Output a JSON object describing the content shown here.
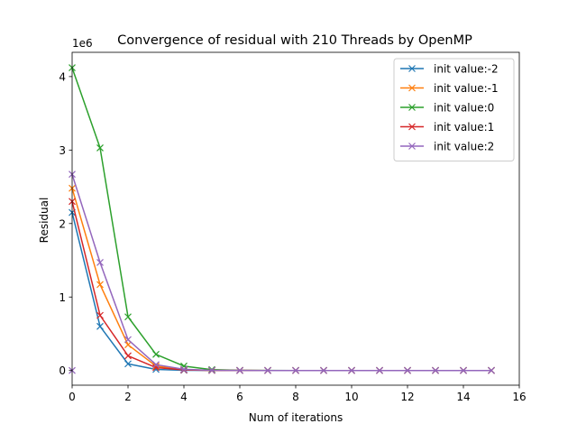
{
  "chart_data": {
    "type": "line",
    "title": "Convergence of residual with 210 Threads by OpenMP",
    "xlabel": "Num of iterations",
    "ylabel": "Residual",
    "y_scale_label": "1e6",
    "xlim": [
      0,
      16
    ],
    "ylim": [
      -0.2,
      4.33
    ],
    "x_ticks": [
      0,
      2,
      4,
      6,
      8,
      10,
      12,
      14,
      16
    ],
    "x_tick_labels": [
      "0",
      "2",
      "4",
      "6",
      "8",
      "10",
      "12",
      "14",
      "16"
    ],
    "y_ticks": [
      0,
      1,
      2,
      3,
      4
    ],
    "y_tick_labels": [
      "0",
      "1",
      "2",
      "3",
      "4"
    ],
    "grid": false,
    "marker": "x",
    "legend_position": "upper right",
    "x": [
      0,
      1,
      2,
      3,
      4,
      5,
      6,
      7,
      8,
      9,
      10,
      11,
      12,
      13,
      14,
      15
    ],
    "series": [
      {
        "name": "init value:-2",
        "color": "#1f77b4",
        "values": [
          2.15,
          0.6,
          0.09,
          0.015,
          0.003,
          0.0006,
          0.0001,
          0,
          0,
          0,
          0,
          0,
          0,
          0,
          0,
          0
        ]
      },
      {
        "name": "init value:-1",
        "color": "#ff7f0e",
        "values": [
          2.48,
          1.17,
          0.35,
          0.06,
          0.012,
          0.002,
          0.0004,
          0,
          0,
          0,
          0,
          0,
          0,
          0,
          0,
          0
        ]
      },
      {
        "name": "init value:0",
        "color": "#2ca02c",
        "values": [
          4.12,
          3.03,
          0.73,
          0.22,
          0.06,
          0.012,
          0.002,
          0.0004,
          0,
          0,
          0,
          0,
          0,
          0,
          0,
          0
        ]
      },
      {
        "name": "init value:1",
        "color": "#d62728",
        "values": [
          2.3,
          0.75,
          0.2,
          0.04,
          0.008,
          0.0015,
          0.0003,
          0,
          0,
          0,
          0,
          0,
          0,
          0,
          0,
          0
        ]
      },
      {
        "name": "init value:2",
        "color": "#9467bd",
        "values": [
          2.67,
          1.47,
          0.42,
          0.08,
          0.016,
          0.003,
          0.0005,
          0,
          0,
          0,
          0,
          0,
          0,
          0,
          0,
          0
        ]
      }
    ],
    "extra_points": [
      {
        "series": "init value:2",
        "x": 0,
        "y": 0
      }
    ]
  }
}
